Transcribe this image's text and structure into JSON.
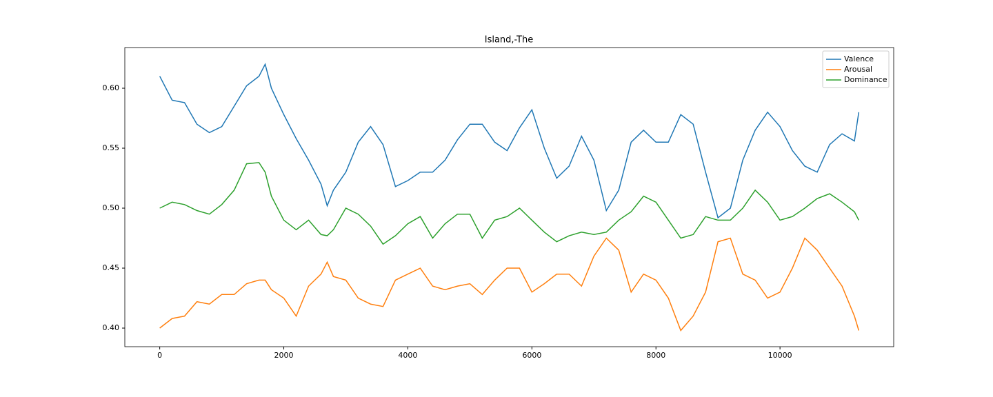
{
  "chart_data": {
    "type": "line",
    "title": "Island,-The",
    "x": [
      0,
      200,
      400,
      600,
      800,
      1000,
      1200,
      1400,
      1600,
      1700,
      1800,
      2000,
      2200,
      2400,
      2600,
      2700,
      2800,
      3000,
      3200,
      3400,
      3600,
      3800,
      4000,
      4200,
      4400,
      4600,
      4800,
      5000,
      5200,
      5400,
      5600,
      5800,
      6000,
      6200,
      6400,
      6600,
      6800,
      7000,
      7200,
      7400,
      7600,
      7800,
      8000,
      8200,
      8400,
      8600,
      8800,
      9000,
      9200,
      9400,
      9600,
      9800,
      10000,
      10200,
      10400,
      10600,
      10800,
      11000,
      11200,
      11270
    ],
    "series": [
      {
        "name": "Valence",
        "color": "#1f77b4",
        "values": [
          0.61,
          0.59,
          0.588,
          0.57,
          0.563,
          0.568,
          0.585,
          0.602,
          0.61,
          0.62,
          0.6,
          0.578,
          0.558,
          0.54,
          0.52,
          0.502,
          0.515,
          0.53,
          0.555,
          0.568,
          0.553,
          0.518,
          0.523,
          0.53,
          0.53,
          0.54,
          0.557,
          0.57,
          0.57,
          0.555,
          0.548,
          0.567,
          0.582,
          0.55,
          0.525,
          0.535,
          0.56,
          0.54,
          0.498,
          0.515,
          0.555,
          0.565,
          0.555,
          0.555,
          0.578,
          0.57,
          0.53,
          0.492,
          0.5,
          0.54,
          0.565,
          0.58,
          0.568,
          0.548,
          0.535,
          0.53,
          0.553,
          0.562,
          0.556,
          0.58
        ]
      },
      {
        "name": "Arousal",
        "color": "#ff7f0e",
        "values": [
          0.4,
          0.408,
          0.41,
          0.422,
          0.42,
          0.428,
          0.428,
          0.437,
          0.44,
          0.44,
          0.432,
          0.425,
          0.41,
          0.435,
          0.445,
          0.455,
          0.443,
          0.44,
          0.425,
          0.42,
          0.418,
          0.44,
          0.445,
          0.45,
          0.435,
          0.432,
          0.435,
          0.437,
          0.428,
          0.44,
          0.45,
          0.45,
          0.43,
          0.437,
          0.445,
          0.445,
          0.435,
          0.46,
          0.475,
          0.465,
          0.43,
          0.445,
          0.44,
          0.425,
          0.398,
          0.41,
          0.43,
          0.472,
          0.475,
          0.445,
          0.44,
          0.425,
          0.43,
          0.45,
          0.475,
          0.465,
          0.45,
          0.435,
          0.41,
          0.398
        ]
      },
      {
        "name": "Dominance",
        "color": "#2ca02c",
        "values": [
          0.5,
          0.505,
          0.503,
          0.498,
          0.495,
          0.503,
          0.515,
          0.537,
          0.538,
          0.53,
          0.51,
          0.49,
          0.482,
          0.49,
          0.478,
          0.477,
          0.482,
          0.5,
          0.495,
          0.485,
          0.47,
          0.477,
          0.487,
          0.493,
          0.475,
          0.487,
          0.495,
          0.495,
          0.475,
          0.49,
          0.493,
          0.5,
          0.49,
          0.48,
          0.472,
          0.477,
          0.48,
          0.478,
          0.48,
          0.49,
          0.497,
          0.51,
          0.505,
          0.49,
          0.475,
          0.478,
          0.493,
          0.49,
          0.49,
          0.5,
          0.515,
          0.505,
          0.49,
          0.493,
          0.5,
          0.508,
          0.512,
          0.505,
          0.497,
          0.49
        ]
      }
    ],
    "xlim": [
      -563,
      11833
    ],
    "xticks": [
      0,
      2000,
      4000,
      6000,
      8000,
      10000
    ],
    "ylim": [
      0.3845,
      0.6339
    ],
    "yticks": [
      {
        "value": 0.4,
        "label": "0.40"
      },
      {
        "value": 0.45,
        "label": "0.45"
      },
      {
        "value": 0.5,
        "label": "0.50"
      },
      {
        "value": 0.55,
        "label": "0.55"
      },
      {
        "value": 0.6,
        "label": "0.60"
      }
    ],
    "legend": "upper right"
  }
}
